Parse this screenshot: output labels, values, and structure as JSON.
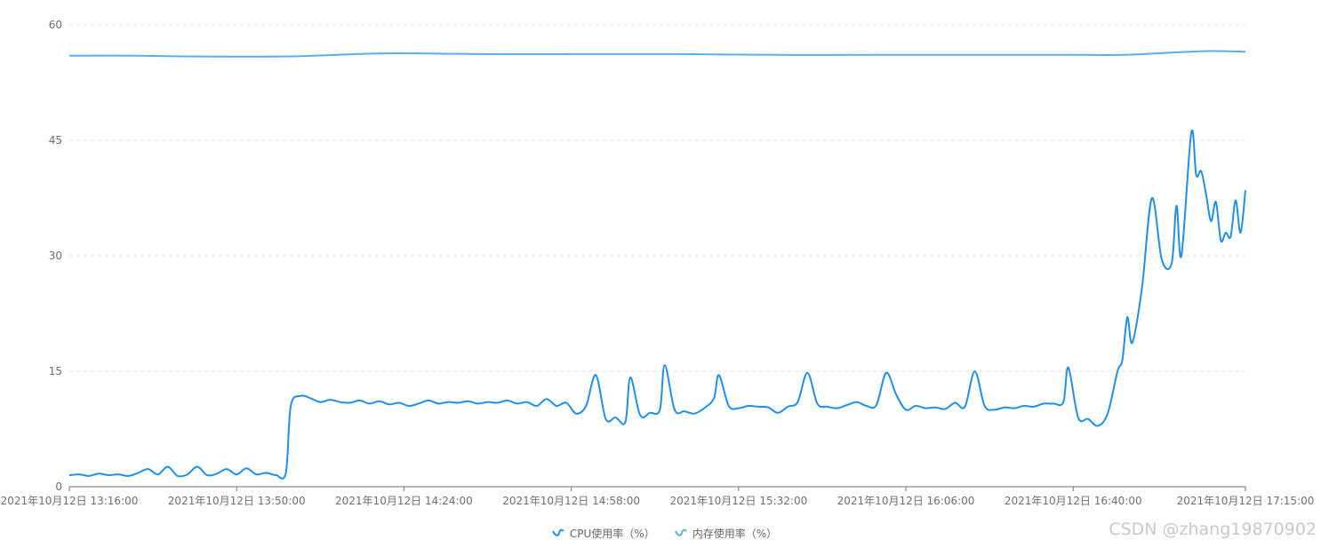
{
  "chart_data": {
    "type": "line",
    "title": "",
    "xlabel": "",
    "ylabel": "",
    "ylim": [
      0,
      60
    ],
    "yticks": [
      0,
      15,
      30,
      45,
      60
    ],
    "x_range": [
      "13:16:00",
      "17:15:00"
    ],
    "xticks": [
      {
        "time": "13:16:00",
        "label": "2021年10月12日 13:16:00"
      },
      {
        "time": "13:50:00",
        "label": "2021年10月12日 13:50:00"
      },
      {
        "time": "14:24:00",
        "label": "2021年10月12日 14:24:00"
      },
      {
        "time": "14:58:00",
        "label": "2021年10月12日 14:58:00"
      },
      {
        "time": "15:32:00",
        "label": "2021年10月12日 15:32:00"
      },
      {
        "time": "16:06:00",
        "label": "2021年10月12日 16:06:00"
      },
      {
        "time": "16:40:00",
        "label": "2021年10月12日 16:40:00"
      },
      {
        "time": "17:15:00",
        "label": "2021年10月12日 17:15:00"
      }
    ],
    "grid": true,
    "legend_position": "bottom-center",
    "series": [
      {
        "name": "CPU使用率（%）",
        "color": "#1f8fe8",
        "points": [
          [
            "13:16:00",
            1.5
          ],
          [
            "13:18:00",
            1.6
          ],
          [
            "13:20:00",
            1.4
          ],
          [
            "13:22:00",
            1.7
          ],
          [
            "13:24:00",
            1.5
          ],
          [
            "13:26:00",
            1.6
          ],
          [
            "13:28:00",
            1.4
          ],
          [
            "13:30:00",
            1.8
          ],
          [
            "13:32:00",
            2.3
          ],
          [
            "13:34:00",
            1.6
          ],
          [
            "13:36:00",
            2.6
          ],
          [
            "13:38:00",
            1.4
          ],
          [
            "13:40:00",
            1.6
          ],
          [
            "13:42:00",
            2.6
          ],
          [
            "13:44:00",
            1.5
          ],
          [
            "13:46:00",
            1.7
          ],
          [
            "13:48:00",
            2.3
          ],
          [
            "13:50:00",
            1.6
          ],
          [
            "13:52:00",
            2.4
          ],
          [
            "13:54:00",
            1.6
          ],
          [
            "13:56:00",
            1.8
          ],
          [
            "13:58:00",
            1.5
          ],
          [
            "14:00:00",
            1.8
          ],
          [
            "14:01:00",
            10.5
          ],
          [
            "14:03:00",
            11.8
          ],
          [
            "14:05:00",
            11.5
          ],
          [
            "14:07:00",
            11.0
          ],
          [
            "14:09:00",
            11.3
          ],
          [
            "14:11:00",
            11.0
          ],
          [
            "14:13:00",
            10.9
          ],
          [
            "14:15:00",
            11.2
          ],
          [
            "14:17:00",
            10.8
          ],
          [
            "14:19:00",
            11.1
          ],
          [
            "14:21:00",
            10.7
          ],
          [
            "14:23:00",
            10.9
          ],
          [
            "14:25:00",
            10.5
          ],
          [
            "14:27:00",
            10.8
          ],
          [
            "14:29:00",
            11.2
          ],
          [
            "14:31:00",
            10.8
          ],
          [
            "14:33:00",
            11.0
          ],
          [
            "14:35:00",
            10.9
          ],
          [
            "14:37:00",
            11.1
          ],
          [
            "14:39:00",
            10.8
          ],
          [
            "14:41:00",
            11.0
          ],
          [
            "14:43:00",
            10.9
          ],
          [
            "14:45:00",
            11.2
          ],
          [
            "14:47:00",
            10.8
          ],
          [
            "14:49:00",
            11.0
          ],
          [
            "14:51:00",
            10.5
          ],
          [
            "14:53:00",
            11.4
          ],
          [
            "14:55:00",
            10.5
          ],
          [
            "14:57:00",
            10.9
          ],
          [
            "14:59:00",
            9.5
          ],
          [
            "15:01:00",
            10.5
          ],
          [
            "15:03:00",
            14.5
          ],
          [
            "15:05:00",
            8.8
          ],
          [
            "15:07:00",
            9.0
          ],
          [
            "15:09:00",
            8.4
          ],
          [
            "15:10:00",
            14.2
          ],
          [
            "15:12:00",
            9.3
          ],
          [
            "15:14:00",
            9.6
          ],
          [
            "15:16:00",
            10.0
          ],
          [
            "15:17:00",
            15.8
          ],
          [
            "15:19:00",
            10.0
          ],
          [
            "15:21:00",
            9.8
          ],
          [
            "15:23:00",
            9.5
          ],
          [
            "15:25:00",
            10.2
          ],
          [
            "15:27:00",
            11.5
          ],
          [
            "15:28:00",
            14.5
          ],
          [
            "15:30:00",
            10.5
          ],
          [
            "15:32:00",
            10.2
          ],
          [
            "15:34:00",
            10.5
          ],
          [
            "15:36:00",
            10.4
          ],
          [
            "15:38:00",
            10.3
          ],
          [
            "15:40:00",
            9.6
          ],
          [
            "15:42:00",
            10.4
          ],
          [
            "15:44:00",
            11.0
          ],
          [
            "15:46:00",
            14.8
          ],
          [
            "15:48:00",
            10.8
          ],
          [
            "15:50:00",
            10.4
          ],
          [
            "15:52:00",
            10.2
          ],
          [
            "15:54:00",
            10.6
          ],
          [
            "15:56:00",
            11.0
          ],
          [
            "15:58:00",
            10.5
          ],
          [
            "16:00:00",
            10.6
          ],
          [
            "16:02:00",
            14.8
          ],
          [
            "16:04:00",
            12.0
          ],
          [
            "16:06:00",
            10.0
          ],
          [
            "16:08:00",
            10.5
          ],
          [
            "16:10:00",
            10.2
          ],
          [
            "16:12:00",
            10.3
          ],
          [
            "16:14:00",
            10.1
          ],
          [
            "16:16:00",
            10.9
          ],
          [
            "16:18:00",
            10.4
          ],
          [
            "16:20:00",
            15.0
          ],
          [
            "16:22:00",
            10.5
          ],
          [
            "16:24:00",
            10.0
          ],
          [
            "16:26:00",
            10.3
          ],
          [
            "16:28:00",
            10.2
          ],
          [
            "16:30:00",
            10.5
          ],
          [
            "16:32:00",
            10.4
          ],
          [
            "16:34:00",
            10.8
          ],
          [
            "16:36:00",
            10.8
          ],
          [
            "16:38:00",
            11.0
          ],
          [
            "16:39:00",
            15.5
          ],
          [
            "16:41:00",
            9.0
          ],
          [
            "16:43:00",
            8.8
          ],
          [
            "16:45:00",
            7.9
          ],
          [
            "16:47:00",
            9.5
          ],
          [
            "16:49:00",
            15.0
          ],
          [
            "16:50:00",
            16.5
          ],
          [
            "16:51:00",
            22.0
          ],
          [
            "16:52:00",
            18.7
          ],
          [
            "16:54:00",
            26.0
          ],
          [
            "16:56:00",
            37.5
          ],
          [
            "16:58:00",
            29.5
          ],
          [
            "17:00:00",
            29.0
          ],
          [
            "17:01:00",
            36.5
          ],
          [
            "17:02:00",
            30.0
          ],
          [
            "17:04:00",
            46.0
          ],
          [
            "17:05:00",
            40.5
          ],
          [
            "17:06:00",
            41.0
          ],
          [
            "17:07:00",
            38.0
          ],
          [
            "17:08:00",
            34.5
          ],
          [
            "17:09:00",
            37.0
          ],
          [
            "17:10:00",
            32.0
          ],
          [
            "17:11:00",
            33.0
          ],
          [
            "17:12:00",
            32.5
          ],
          [
            "17:13:00",
            37.2
          ],
          [
            "17:14:00",
            33.0
          ],
          [
            "17:15:00",
            38.5
          ]
        ]
      },
      {
        "name": "内存使用率（%）",
        "color": "#5aaef0",
        "points": [
          [
            "13:16:00",
            56.0
          ],
          [
            "13:30:00",
            56.0
          ],
          [
            "13:40:00",
            55.9
          ],
          [
            "14:00:00",
            55.9
          ],
          [
            "14:20:00",
            56.3
          ],
          [
            "14:40:00",
            56.2
          ],
          [
            "15:00:00",
            56.2
          ],
          [
            "15:20:00",
            56.2
          ],
          [
            "15:40:00",
            56.1
          ],
          [
            "16:00:00",
            56.1
          ],
          [
            "16:20:00",
            56.1
          ],
          [
            "16:40:00",
            56.1
          ],
          [
            "16:50:00",
            56.1
          ],
          [
            "17:00:00",
            56.4
          ],
          [
            "17:08:00",
            56.6
          ],
          [
            "17:15:00",
            56.5
          ]
        ]
      }
    ]
  },
  "legend": {
    "items": [
      {
        "label": "CPU使用率（%）",
        "icon": "line-wave-icon"
      },
      {
        "label": "内存使用率（%）",
        "icon": "line-wave-icon"
      }
    ]
  },
  "watermark": "CSDN @zhang19870902"
}
